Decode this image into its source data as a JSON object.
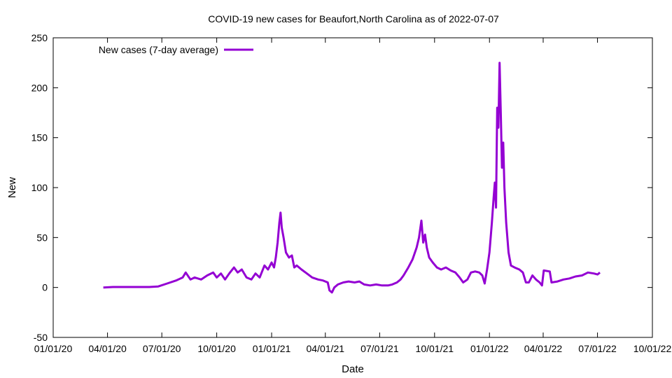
{
  "chart_data": {
    "type": "line",
    "title": "COVID-19 new cases for Beaufort,North Carolina as of 2022-07-07",
    "xlabel": "Date",
    "ylabel": "New",
    "xlim": [
      "2020-01-01",
      "2022-10-01"
    ],
    "ylim": [
      -50,
      250
    ],
    "x_ticks": [
      "01/01/20",
      "04/01/20",
      "07/01/20",
      "10/01/20",
      "01/01/21",
      "04/01/21",
      "07/01/21",
      "10/01/21",
      "01/01/22",
      "04/01/22",
      "07/01/22",
      "10/01/22"
    ],
    "x_tick_dates": [
      "2020-01-01",
      "2020-04-01",
      "2020-07-01",
      "2020-10-01",
      "2021-01-01",
      "2021-04-01",
      "2021-07-01",
      "2021-10-01",
      "2022-01-01",
      "2022-04-01",
      "2022-07-01",
      "2022-10-01"
    ],
    "y_ticks": [
      -50,
      0,
      50,
      100,
      150,
      200,
      250
    ],
    "grid": false,
    "legend_position": "top-left",
    "series": [
      {
        "name": "New cases (7-day average)",
        "color": "#9400d3",
        "points": [
          [
            "2020-03-25",
            0
          ],
          [
            "2020-04-10",
            0.5
          ],
          [
            "2020-05-01",
            0.5
          ],
          [
            "2020-05-20",
            0.5
          ],
          [
            "2020-06-10",
            0.5
          ],
          [
            "2020-06-25",
            1
          ],
          [
            "2020-07-10",
            4
          ],
          [
            "2020-07-25",
            7
          ],
          [
            "2020-08-05",
            10
          ],
          [
            "2020-08-10",
            15
          ],
          [
            "2020-08-18",
            8
          ],
          [
            "2020-08-25",
            10
          ],
          [
            "2020-09-05",
            8
          ],
          [
            "2020-09-15",
            12
          ],
          [
            "2020-09-25",
            15
          ],
          [
            "2020-10-01",
            10
          ],
          [
            "2020-10-08",
            14
          ],
          [
            "2020-10-15",
            8
          ],
          [
            "2020-10-22",
            14
          ],
          [
            "2020-10-30",
            20
          ],
          [
            "2020-11-05",
            15
          ],
          [
            "2020-11-12",
            18
          ],
          [
            "2020-11-20",
            10
          ],
          [
            "2020-11-28",
            8
          ],
          [
            "2020-12-05",
            14
          ],
          [
            "2020-12-12",
            10
          ],
          [
            "2020-12-20",
            22
          ],
          [
            "2020-12-26",
            18
          ],
          [
            "2021-01-01",
            25
          ],
          [
            "2021-01-05",
            20
          ],
          [
            "2021-01-08",
            30
          ],
          [
            "2021-01-11",
            45
          ],
          [
            "2021-01-14",
            65
          ],
          [
            "2021-01-16",
            75
          ],
          [
            "2021-01-18",
            60
          ],
          [
            "2021-01-21",
            50
          ],
          [
            "2021-01-25",
            35
          ],
          [
            "2021-01-30",
            30
          ],
          [
            "2021-02-04",
            32
          ],
          [
            "2021-02-08",
            20
          ],
          [
            "2021-02-12",
            22
          ],
          [
            "2021-02-20",
            18
          ],
          [
            "2021-03-01",
            14
          ],
          [
            "2021-03-10",
            10
          ],
          [
            "2021-03-20",
            8
          ],
          [
            "2021-03-28",
            7
          ],
          [
            "2021-04-05",
            5
          ],
          [
            "2021-04-08",
            -3
          ],
          [
            "2021-04-12",
            -5
          ],
          [
            "2021-04-16",
            0
          ],
          [
            "2021-04-22",
            3
          ],
          [
            "2021-05-01",
            5
          ],
          [
            "2021-05-10",
            6
          ],
          [
            "2021-05-20",
            5
          ],
          [
            "2021-05-28",
            6
          ],
          [
            "2021-06-05",
            3
          ],
          [
            "2021-06-15",
            2
          ],
          [
            "2021-06-25",
            3
          ],
          [
            "2021-07-05",
            2
          ],
          [
            "2021-07-15",
            2
          ],
          [
            "2021-07-22",
            3
          ],
          [
            "2021-07-30",
            5
          ],
          [
            "2021-08-05",
            8
          ],
          [
            "2021-08-10",
            12
          ],
          [
            "2021-08-18",
            20
          ],
          [
            "2021-08-25",
            28
          ],
          [
            "2021-09-01",
            40
          ],
          [
            "2021-09-05",
            50
          ],
          [
            "2021-09-09",
            67
          ],
          [
            "2021-09-12",
            45
          ],
          [
            "2021-09-15",
            53
          ],
          [
            "2021-09-18",
            40
          ],
          [
            "2021-09-22",
            30
          ],
          [
            "2021-09-28",
            25
          ],
          [
            "2021-10-05",
            20
          ],
          [
            "2021-10-12",
            18
          ],
          [
            "2021-10-20",
            20
          ],
          [
            "2021-10-28",
            17
          ],
          [
            "2021-11-05",
            15
          ],
          [
            "2021-11-12",
            10
          ],
          [
            "2021-11-18",
            5
          ],
          [
            "2021-11-25",
            8
          ],
          [
            "2021-12-01",
            15
          ],
          [
            "2021-12-08",
            16
          ],
          [
            "2021-12-15",
            15
          ],
          [
            "2021-12-20",
            12
          ],
          [
            "2021-12-24",
            4
          ],
          [
            "2021-12-28",
            18
          ],
          [
            "2022-01-01",
            35
          ],
          [
            "2022-01-05",
            65
          ],
          [
            "2022-01-08",
            90
          ],
          [
            "2022-01-10",
            105
          ],
          [
            "2022-01-12",
            80
          ],
          [
            "2022-01-14",
            180
          ],
          [
            "2022-01-16",
            160
          ],
          [
            "2022-01-18",
            225
          ],
          [
            "2022-01-20",
            175
          ],
          [
            "2022-01-22",
            120
          ],
          [
            "2022-01-24",
            145
          ],
          [
            "2022-01-26",
            100
          ],
          [
            "2022-01-29",
            65
          ],
          [
            "2022-02-02",
            35
          ],
          [
            "2022-02-06",
            22
          ],
          [
            "2022-02-12",
            20
          ],
          [
            "2022-02-20",
            18
          ],
          [
            "2022-02-26",
            15
          ],
          [
            "2022-03-03",
            5
          ],
          [
            "2022-03-08",
            5
          ],
          [
            "2022-03-14",
            12
          ],
          [
            "2022-03-20",
            8
          ],
          [
            "2022-03-26",
            5
          ],
          [
            "2022-03-30",
            2
          ],
          [
            "2022-04-02",
            17
          ],
          [
            "2022-04-12",
            16
          ],
          [
            "2022-04-15",
            5
          ],
          [
            "2022-04-25",
            6
          ],
          [
            "2022-05-05",
            8
          ],
          [
            "2022-05-15",
            9
          ],
          [
            "2022-05-25",
            11
          ],
          [
            "2022-06-05",
            12
          ],
          [
            "2022-06-15",
            15
          ],
          [
            "2022-06-25",
            14
          ],
          [
            "2022-07-01",
            13
          ],
          [
            "2022-07-05",
            15
          ]
        ]
      }
    ]
  }
}
